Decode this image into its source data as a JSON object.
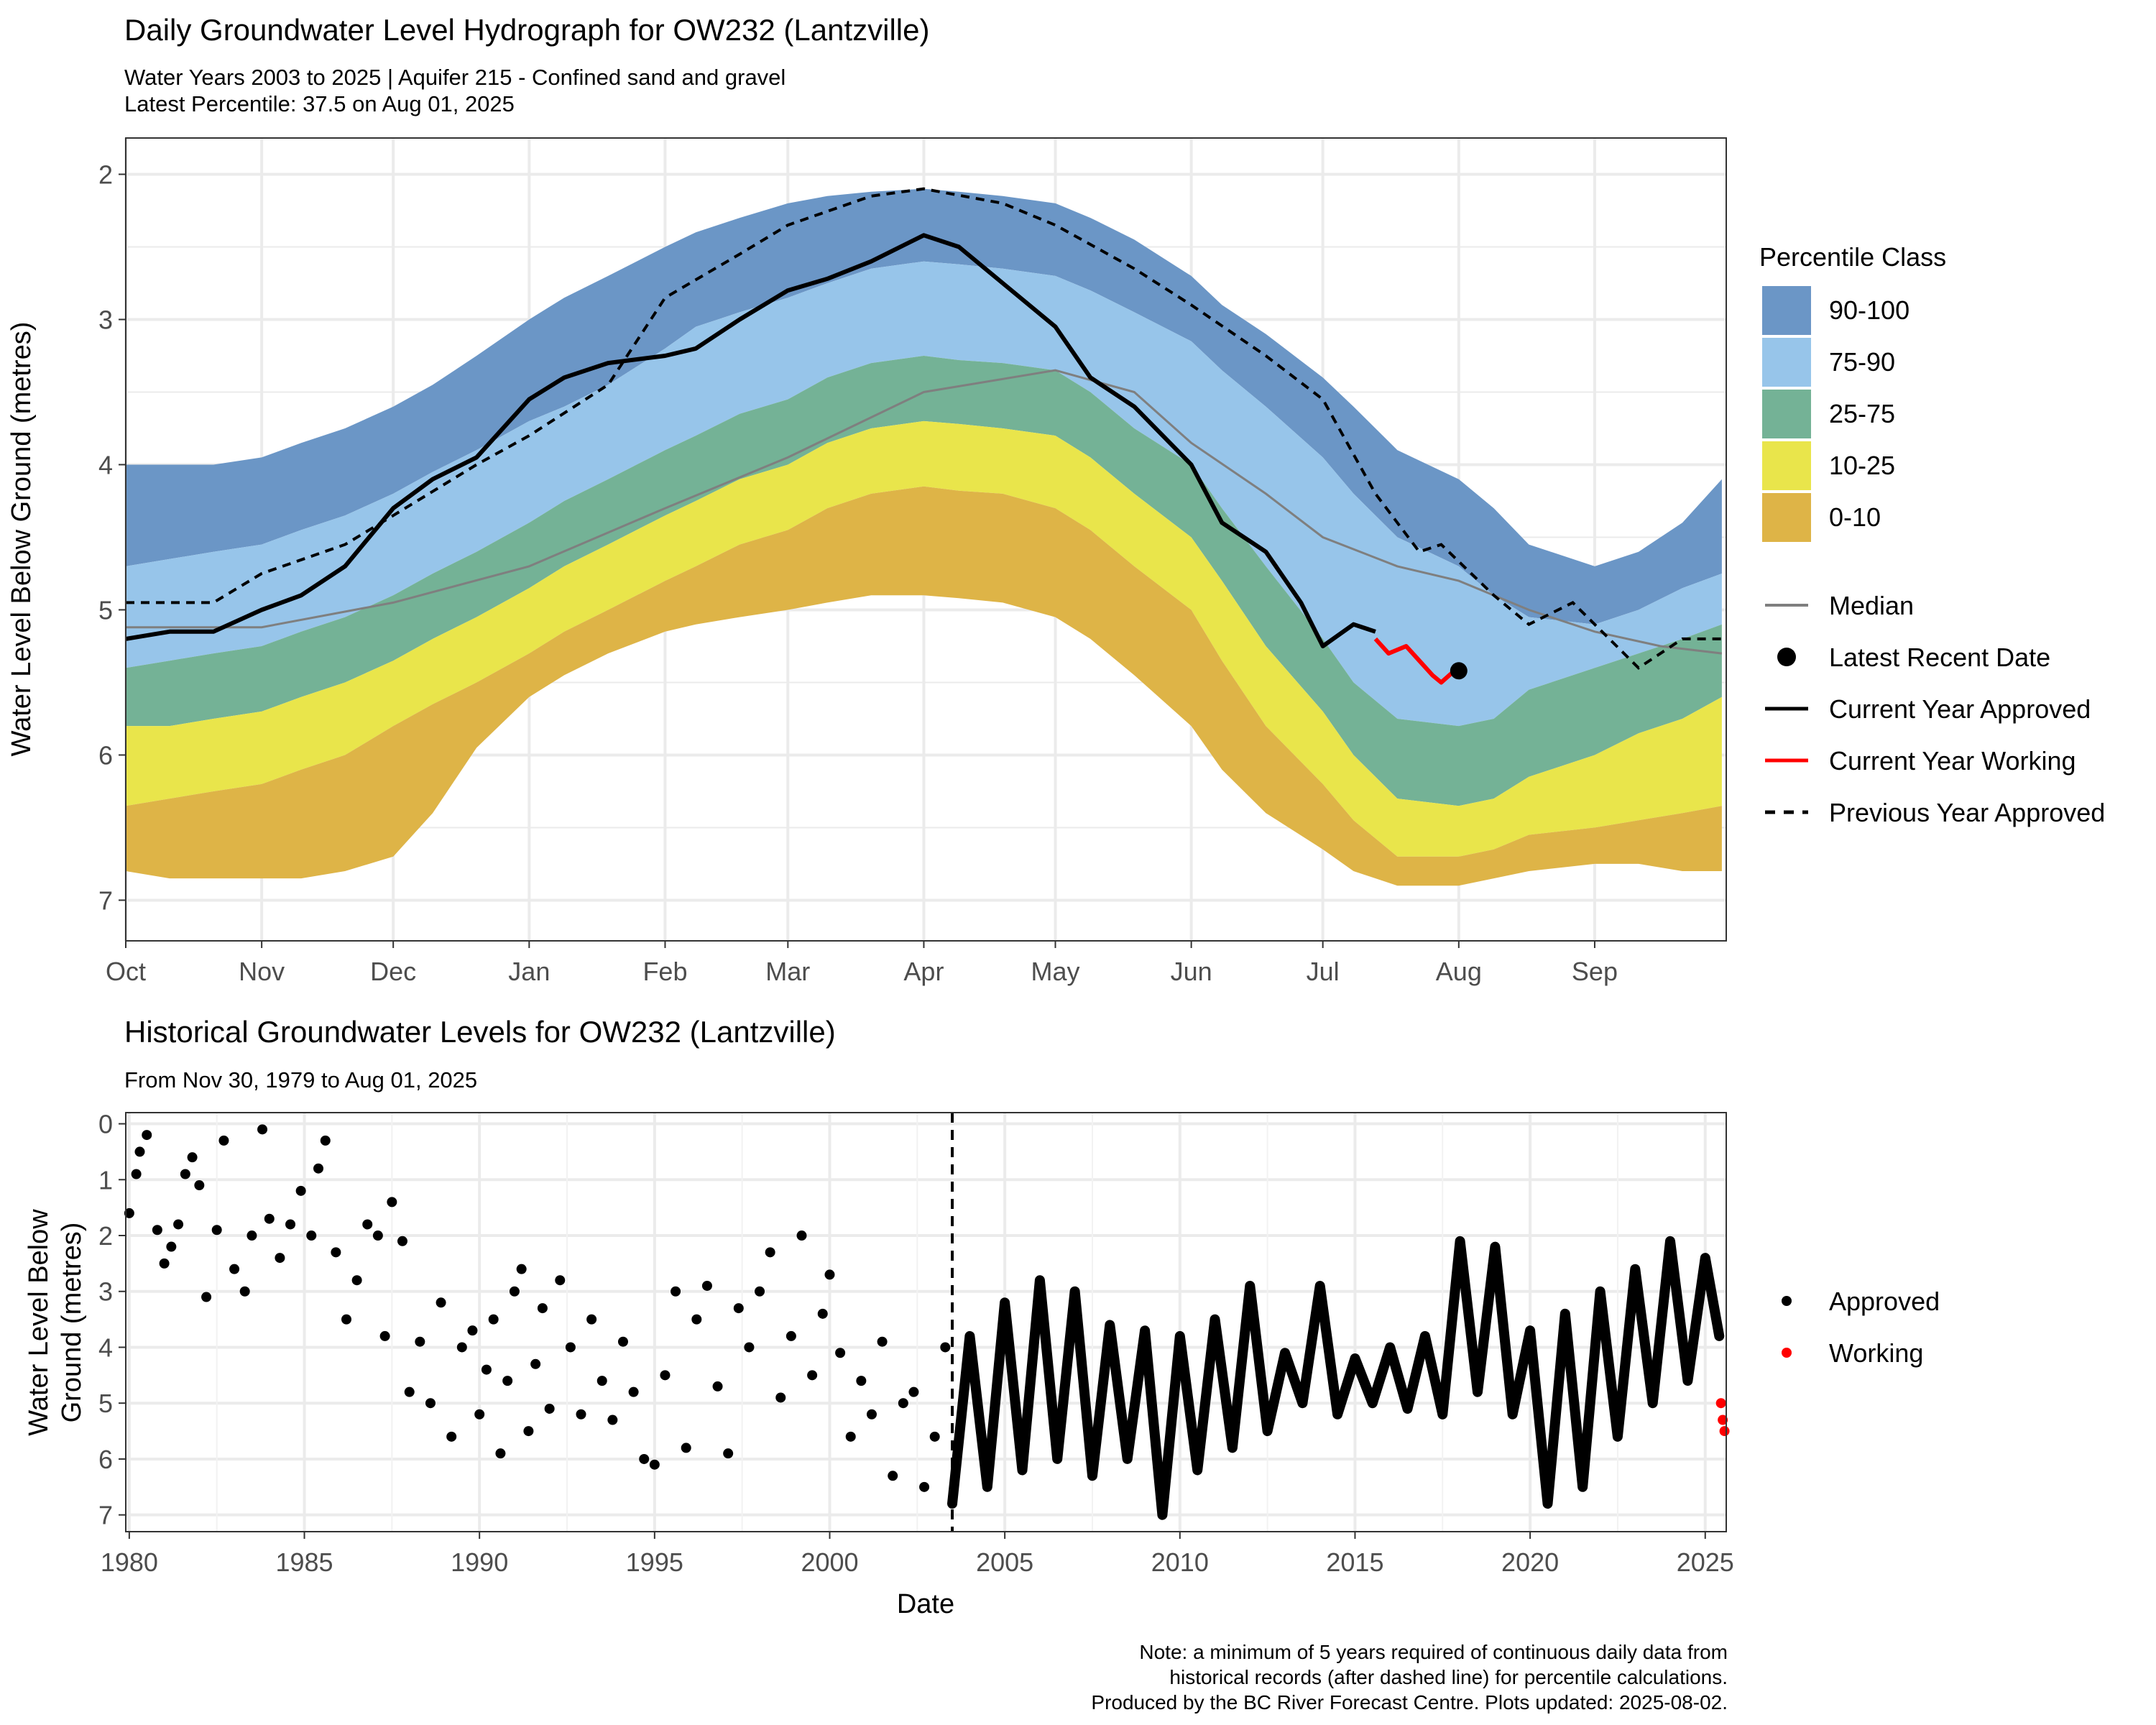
{
  "chart_data": [
    {
      "type": "area",
      "title": "Daily Groundwater Level Hydrograph for OW232 (Lantzville)",
      "subtitle_line1": "Water Years 2003 to 2025 | Aquifer 215 - Confined sand and gravel",
      "subtitle_line2": "Latest Percentile: 37.5 on Aug 01, 2025",
      "xlabel": "",
      "ylabel": "Water Level Below Ground (metres)",
      "y_reversed": true,
      "ylim": [
        1.75,
        7.28
      ],
      "yticks": [
        2,
        3,
        4,
        5,
        6,
        7
      ],
      "xticks": [
        "Oct",
        "Nov",
        "Dec",
        "Jan",
        "Feb",
        "Mar",
        "Apr",
        "May",
        "Jun",
        "Jul",
        "Aug",
        "Sep"
      ],
      "xtick_days": [
        0,
        31,
        61,
        92,
        123,
        151,
        182,
        212,
        243,
        273,
        304,
        335
      ],
      "xlim": [
        0,
        365
      ],
      "grid": true,
      "legend_title": "Percentile Class",
      "legend_position": "right",
      "percentile_classes": [
        {
          "name": "90-100",
          "color": "#6B96C6"
        },
        {
          "name": "75-90",
          "color": "#97C5EA"
        },
        {
          "name": "25-75",
          "color": "#74B296"
        },
        {
          "name": "10-25",
          "color": "#E9E54B"
        },
        {
          "name": "0-10",
          "color": "#DEB447"
        }
      ],
      "line_legend": [
        {
          "name": "Median",
          "style": "grey-line"
        },
        {
          "name": "Latest Recent Date",
          "style": "black-point"
        },
        {
          "name": "Current Year Approved",
          "style": "black-line"
        },
        {
          "name": "Current Year Working",
          "style": "red-line"
        },
        {
          "name": "Previous Year Approved",
          "style": "dashed-line"
        }
      ],
      "bands_x": [
        0,
        10,
        20,
        31,
        40,
        50,
        61,
        70,
        80,
        92,
        100,
        110,
        123,
        130,
        140,
        151,
        160,
        170,
        182,
        190,
        200,
        212,
        220,
        230,
        243,
        250,
        260,
        273,
        280,
        290,
        304,
        312,
        320,
        335,
        345,
        355,
        364
      ],
      "band_top": [
        4.0,
        4.0,
        4.0,
        3.95,
        3.85,
        3.75,
        3.6,
        3.45,
        3.25,
        3.0,
        2.85,
        2.7,
        2.5,
        2.4,
        2.3,
        2.2,
        2.15,
        2.12,
        2.1,
        2.12,
        2.15,
        2.2,
        2.3,
        2.45,
        2.7,
        2.9,
        3.1,
        3.4,
        3.6,
        3.9,
        4.1,
        4.3,
        4.55,
        4.7,
        4.6,
        4.4,
        4.1
      ],
      "band_p90": [
        4.7,
        4.65,
        4.6,
        4.55,
        4.45,
        4.35,
        4.2,
        4.05,
        3.9,
        3.7,
        3.6,
        3.45,
        3.2,
        3.05,
        2.95,
        2.85,
        2.75,
        2.65,
        2.6,
        2.62,
        2.65,
        2.7,
        2.8,
        2.95,
        3.15,
        3.35,
        3.6,
        3.95,
        4.2,
        4.5,
        4.7,
        4.9,
        5.05,
        5.1,
        5.0,
        4.85,
        4.75
      ],
      "band_p75": [
        5.4,
        5.35,
        5.3,
        5.25,
        5.15,
        5.05,
        4.9,
        4.75,
        4.6,
        4.4,
        4.25,
        4.1,
        3.9,
        3.8,
        3.65,
        3.55,
        3.4,
        3.3,
        3.25,
        3.28,
        3.3,
        3.35,
        3.5,
        3.75,
        4.0,
        4.3,
        4.7,
        5.2,
        5.5,
        5.75,
        5.8,
        5.75,
        5.55,
        5.4,
        5.3,
        5.2,
        5.1
      ],
      "band_p25": [
        5.8,
        5.8,
        5.75,
        5.7,
        5.6,
        5.5,
        5.35,
        5.2,
        5.05,
        4.85,
        4.7,
        4.55,
        4.35,
        4.25,
        4.1,
        4.0,
        3.85,
        3.75,
        3.7,
        3.72,
        3.75,
        3.8,
        3.95,
        4.2,
        4.5,
        4.8,
        5.25,
        5.7,
        6.0,
        6.3,
        6.35,
        6.3,
        6.15,
        6.0,
        5.85,
        5.75,
        5.6
      ],
      "band_p10": [
        6.35,
        6.3,
        6.25,
        6.2,
        6.1,
        6.0,
        5.8,
        5.65,
        5.5,
        5.3,
        5.15,
        5.0,
        4.8,
        4.7,
        4.55,
        4.45,
        4.3,
        4.2,
        4.15,
        4.18,
        4.2,
        4.3,
        4.45,
        4.7,
        5.0,
        5.35,
        5.8,
        6.2,
        6.45,
        6.7,
        6.7,
        6.65,
        6.55,
        6.5,
        6.45,
        6.4,
        6.35
      ],
      "band_bottom": [
        6.8,
        6.85,
        6.85,
        6.85,
        6.85,
        6.8,
        6.7,
        6.4,
        5.95,
        5.6,
        5.45,
        5.3,
        5.15,
        5.1,
        5.05,
        5.0,
        4.95,
        4.9,
        4.9,
        4.92,
        4.95,
        5.05,
        5.2,
        5.45,
        5.8,
        6.1,
        6.4,
        6.65,
        6.8,
        6.9,
        6.9,
        6.85,
        6.8,
        6.75,
        6.75,
        6.8,
        6.8
      ],
      "median_x": [
        0,
        31,
        61,
        92,
        123,
        151,
        182,
        212,
        230,
        243,
        260,
        273,
        290,
        304,
        320,
        335,
        350,
        364
      ],
      "median_y": [
        5.12,
        5.12,
        4.95,
        4.7,
        4.3,
        3.95,
        3.5,
        3.35,
        3.5,
        3.85,
        4.2,
        4.5,
        4.7,
        4.8,
        5.0,
        5.15,
        5.25,
        5.3
      ],
      "current_approved_x": [
        0,
        10,
        20,
        31,
        40,
        50,
        61,
        70,
        80,
        92,
        100,
        110,
        123,
        130,
        140,
        151,
        160,
        170,
        182,
        190,
        200,
        212,
        220,
        230,
        243,
        250,
        260,
        268,
        273,
        280,
        285
      ],
      "current_approved_y": [
        5.2,
        5.15,
        5.15,
        5.0,
        4.9,
        4.7,
        4.3,
        4.1,
        3.95,
        3.55,
        3.4,
        3.3,
        3.25,
        3.2,
        3.0,
        2.8,
        2.72,
        2.6,
        2.42,
        2.5,
        2.75,
        3.05,
        3.4,
        3.6,
        4.0,
        4.4,
        4.6,
        4.95,
        5.25,
        5.1,
        5.15
      ],
      "current_working_x": [
        285,
        288,
        292,
        295,
        298,
        300,
        303
      ],
      "current_working_y": [
        5.2,
        5.3,
        5.25,
        5.35,
        5.45,
        5.5,
        5.42
      ],
      "latest_point": {
        "day": 304,
        "value": 5.42
      },
      "previous_approved_x": [
        0,
        20,
        31,
        50,
        61,
        80,
        92,
        110,
        123,
        140,
        151,
        170,
        182,
        200,
        212,
        230,
        243,
        260,
        273,
        285,
        295,
        300,
        312,
        320,
        330,
        345,
        355,
        364
      ],
      "previous_approved_y": [
        4.95,
        4.95,
        4.75,
        4.55,
        4.35,
        4.0,
        3.8,
        3.45,
        2.85,
        2.55,
        2.35,
        2.15,
        2.1,
        2.2,
        2.35,
        2.65,
        2.9,
        3.25,
        3.55,
        4.2,
        4.6,
        4.55,
        4.9,
        5.1,
        4.95,
        5.4,
        5.2,
        5.2
      ]
    },
    {
      "type": "scatter",
      "title": "Historical Groundwater Levels for OW232 (Lantzville)",
      "subtitle": "From Nov 30, 1979 to Aug 01, 2025",
      "xlabel": "Date",
      "ylabel_line1": "Water Level Below",
      "ylabel_line2": "Ground (metres)",
      "y_reversed": true,
      "ylim": [
        -0.2,
        7.3
      ],
      "yticks": [
        0,
        1,
        2,
        3,
        4,
        5,
        6,
        7
      ],
      "xlim": [
        1979.9,
        2025.6
      ],
      "xticks": [
        1980,
        1985,
        1990,
        1995,
        2000,
        2005,
        2010,
        2015,
        2020,
        2025
      ],
      "dashed_line_year": 2003.5,
      "grid": true,
      "legend_position": "right",
      "series": [
        {
          "name": "Approved",
          "color": "#000000"
        },
        {
          "name": "Working",
          "color": "#FF0000"
        }
      ],
      "manual_points": [
        [
          1980.0,
          1.6
        ],
        [
          1980.2,
          0.9
        ],
        [
          1980.3,
          0.5
        ],
        [
          1980.5,
          0.2
        ],
        [
          1980.8,
          1.9
        ],
        [
          1981.0,
          2.5
        ],
        [
          1981.2,
          2.2
        ],
        [
          1981.4,
          1.8
        ],
        [
          1981.6,
          0.9
        ],
        [
          1981.8,
          0.6
        ],
        [
          1982.0,
          1.1
        ],
        [
          1982.2,
          3.1
        ],
        [
          1982.5,
          1.9
        ],
        [
          1982.7,
          0.3
        ],
        [
          1983.0,
          2.6
        ],
        [
          1983.3,
          3.0
        ],
        [
          1983.5,
          2.0
        ],
        [
          1983.8,
          0.1
        ],
        [
          1984.0,
          1.7
        ],
        [
          1984.3,
          2.4
        ],
        [
          1984.6,
          1.8
        ],
        [
          1984.9,
          1.2
        ],
        [
          1985.2,
          2.0
        ],
        [
          1985.4,
          0.8
        ],
        [
          1985.6,
          0.3
        ],
        [
          1985.9,
          2.3
        ],
        [
          1986.2,
          3.5
        ],
        [
          1986.5,
          2.8
        ],
        [
          1986.8,
          1.8
        ],
        [
          1987.1,
          2.0
        ],
        [
          1987.3,
          3.8
        ],
        [
          1987.5,
          1.4
        ],
        [
          1987.8,
          2.1
        ],
        [
          1988.0,
          4.8
        ],
        [
          1988.3,
          3.9
        ],
        [
          1988.6,
          5.0
        ],
        [
          1988.9,
          3.2
        ],
        [
          1989.2,
          5.6
        ],
        [
          1989.5,
          4.0
        ],
        [
          1989.8,
          3.7
        ],
        [
          1990.0,
          5.2
        ],
        [
          1990.2,
          4.4
        ],
        [
          1990.4,
          3.5
        ],
        [
          1990.6,
          5.9
        ],
        [
          1990.8,
          4.6
        ],
        [
          1991.0,
          3.0
        ],
        [
          1991.2,
          2.6
        ],
        [
          1991.4,
          5.5
        ],
        [
          1991.6,
          4.3
        ],
        [
          1991.8,
          3.3
        ],
        [
          1992.0,
          5.1
        ],
        [
          1992.3,
          2.8
        ],
        [
          1992.6,
          4.0
        ],
        [
          1992.9,
          5.2
        ],
        [
          1993.2,
          3.5
        ],
        [
          1993.5,
          4.6
        ],
        [
          1993.8,
          5.3
        ],
        [
          1994.1,
          3.9
        ],
        [
          1994.4,
          4.8
        ],
        [
          1994.7,
          6.0
        ],
        [
          1995.0,
          6.1
        ],
        [
          1995.3,
          4.5
        ],
        [
          1995.6,
          3.0
        ],
        [
          1995.9,
          5.8
        ],
        [
          1996.2,
          3.5
        ],
        [
          1996.5,
          2.9
        ],
        [
          1996.8,
          4.7
        ],
        [
          1997.1,
          5.9
        ],
        [
          1997.4,
          3.3
        ],
        [
          1997.7,
          4.0
        ],
        [
          1998.0,
          3.0
        ],
        [
          1998.3,
          2.3
        ],
        [
          1998.6,
          4.9
        ],
        [
          1998.9,
          3.8
        ],
        [
          1999.2,
          2.0
        ],
        [
          1999.5,
          4.5
        ],
        [
          1999.8,
          3.4
        ],
        [
          2000.0,
          2.7
        ],
        [
          2000.3,
          4.1
        ],
        [
          2000.6,
          5.6
        ],
        [
          2000.9,
          4.6
        ],
        [
          2001.2,
          5.2
        ],
        [
          2001.5,
          3.9
        ],
        [
          2001.8,
          6.3
        ],
        [
          2002.1,
          5.0
        ],
        [
          2002.4,
          4.8
        ],
        [
          2002.7,
          6.5
        ],
        [
          2003.0,
          5.6
        ],
        [
          2003.3,
          4.0
        ]
      ],
      "continuous_x": [
        2003.5,
        2004.0,
        2004.5,
        2005.0,
        2005.5,
        2006.0,
        2006.5,
        2007.0,
        2007.5,
        2008.0,
        2008.5,
        2009.0,
        2009.5,
        2010.0,
        2010.5,
        2011.0,
        2011.5,
        2012.0,
        2012.5,
        2013.0,
        2013.5,
        2014.0,
        2014.5,
        2015.0,
        2015.5,
        2016.0,
        2016.5,
        2017.0,
        2017.5,
        2018.0,
        2018.5,
        2019.0,
        2019.5,
        2020.0,
        2020.5,
        2021.0,
        2021.5,
        2022.0,
        2022.5,
        2023.0,
        2023.5,
        2024.0,
        2024.5,
        2025.0,
        2025.4
      ],
      "continuous_y": [
        6.8,
        3.8,
        6.5,
        3.2,
        6.2,
        2.8,
        6.0,
        3.0,
        6.3,
        3.6,
        6.0,
        3.7,
        7.0,
        3.8,
        6.2,
        3.5,
        5.8,
        2.9,
        5.5,
        4.1,
        5.0,
        2.9,
        5.2,
        4.2,
        5.0,
        4.0,
        5.1,
        3.8,
        5.2,
        2.1,
        4.8,
        2.2,
        5.2,
        3.7,
        6.8,
        3.4,
        6.5,
        3.0,
        5.6,
        2.6,
        5.0,
        2.1,
        4.6,
        2.4,
        3.8
      ],
      "working_points": [
        [
          2025.45,
          5.0
        ],
        [
          2025.5,
          5.3
        ],
        [
          2025.55,
          5.5
        ]
      ]
    }
  ],
  "note": {
    "line1": "Note: a minimum of 5 years required of continuous daily data from",
    "line2": "historical records (after dashed line) for percentile calculations.",
    "line3": "Produced by the BC River Forecast Centre. Plots updated: 2025-08-02."
  }
}
